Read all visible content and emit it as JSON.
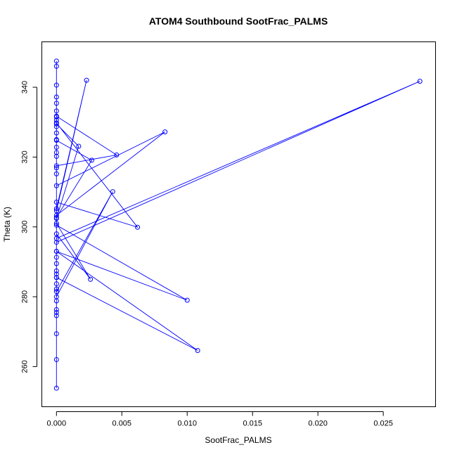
{
  "chart_data": {
    "type": "line",
    "title": "ATOM4 Southbound SootFrac_PALMS",
    "xlabel": "SootFrac_PALMS",
    "ylabel": "Theta (K)",
    "xlim": [
      -0.00112,
      0.029
    ],
    "ylim": [
      248.5,
      353.0
    ],
    "x_ticks": [
      0.0,
      0.005,
      0.01,
      0.015,
      0.02,
      0.025
    ],
    "x_tick_labels": [
      "0.000",
      "0.005",
      "0.010",
      "0.015",
      "0.020",
      "0.025"
    ],
    "y_ticks": [
      260,
      280,
      300,
      320,
      340
    ],
    "y_tick_labels": [
      "260",
      "280",
      "300",
      "320",
      "340"
    ],
    "grid": false,
    "marker": "open-circle",
    "series": [
      {
        "color": "#0000ff",
        "x": [
          0.0,
          0.0,
          0.0,
          0.0,
          0.0,
          0.0,
          0.0,
          0.0,
          0.0,
          0.0,
          0.0,
          0.0,
          0.0,
          0.0,
          0.0,
          0.0108,
          0.0,
          0.0,
          0.01,
          0.0,
          0.0,
          0.0026,
          0.0,
          0.0,
          0.0043,
          0.0,
          0.0,
          0.0278,
          0.0,
          0.0,
          0.0083,
          0.0,
          0.0,
          0.0062,
          0.0,
          0.0,
          0.0046,
          0.0,
          0.0,
          0.0027,
          0.0,
          0.0,
          0.0017,
          0.0,
          0.0,
          0.0023,
          0.0,
          0.0,
          0.0,
          0.0,
          0.0,
          0.0,
          0.0,
          0.0,
          0.0,
          0.0,
          0.0,
          0.0,
          0.0,
          0.0,
          0.0,
          0.0,
          0.0
        ],
        "y": [
          253.8,
          262.0,
          269.4,
          274.6,
          275.5,
          276.3,
          278.8,
          282.2,
          283.7,
          285.5,
          286.5,
          287.4,
          289.5,
          291.3,
          293.0,
          264.6,
          285.5,
          293.0,
          279.0,
          300.5,
          298.0,
          285.0,
          301.0,
          280.0,
          310.1,
          281.5,
          295.6,
          341.7,
          296.7,
          303.3,
          327.2,
          311.8,
          307.1,
          299.9,
          329.8,
          317.5,
          320.6,
          331.7,
          324.8,
          319.1,
          302.7,
          329.5,
          323.1,
          302.4,
          305.2,
          342.0,
          304.6,
          315.2,
          316.9,
          320.2,
          321.3,
          322.8,
          325.0,
          326.9,
          328.7,
          330.6,
          331.5,
          333.2,
          335.4,
          337.2,
          340.6,
          346.0,
          347.5
        ]
      }
    ]
  }
}
